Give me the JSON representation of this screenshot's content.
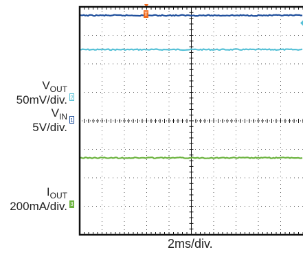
{
  "chart_data": {
    "type": "line",
    "grid": true,
    "divisions": {
      "x": 10,
      "y": 8
    },
    "timebase": "2ms/div.",
    "trigger_marker": "T",
    "series": [
      {
        "name": "VOUT",
        "scale": "50mV/div.",
        "channel_marker": "2",
        "color": "#55c0d6",
        "position_div": 2.5,
        "value_div": 0.0
      },
      {
        "name": "VIN",
        "scale": "5V/div.",
        "channel_marker": "1",
        "color": "#1f4f9c",
        "position_div": 0.7,
        "value_div": 3.0
      },
      {
        "name": "IOUT",
        "scale": "200mA/div.",
        "channel_marker": "3",
        "color": "#6cb33f",
        "position_div": -3.8,
        "value_div": 2.5
      }
    ]
  },
  "labels": {
    "vout": {
      "main": "V",
      "sub": "OUT",
      "scale": "50mV/div."
    },
    "vin": {
      "main": "V",
      "sub": "IN",
      "scale": "5V/div."
    },
    "iout": {
      "main": "I",
      "sub": "OUT",
      "scale": "200mA/div."
    }
  },
  "colors": {
    "grid": "#111111",
    "frame": "#111111",
    "trigger": "#f26b1d",
    "background": "#ffffff"
  }
}
